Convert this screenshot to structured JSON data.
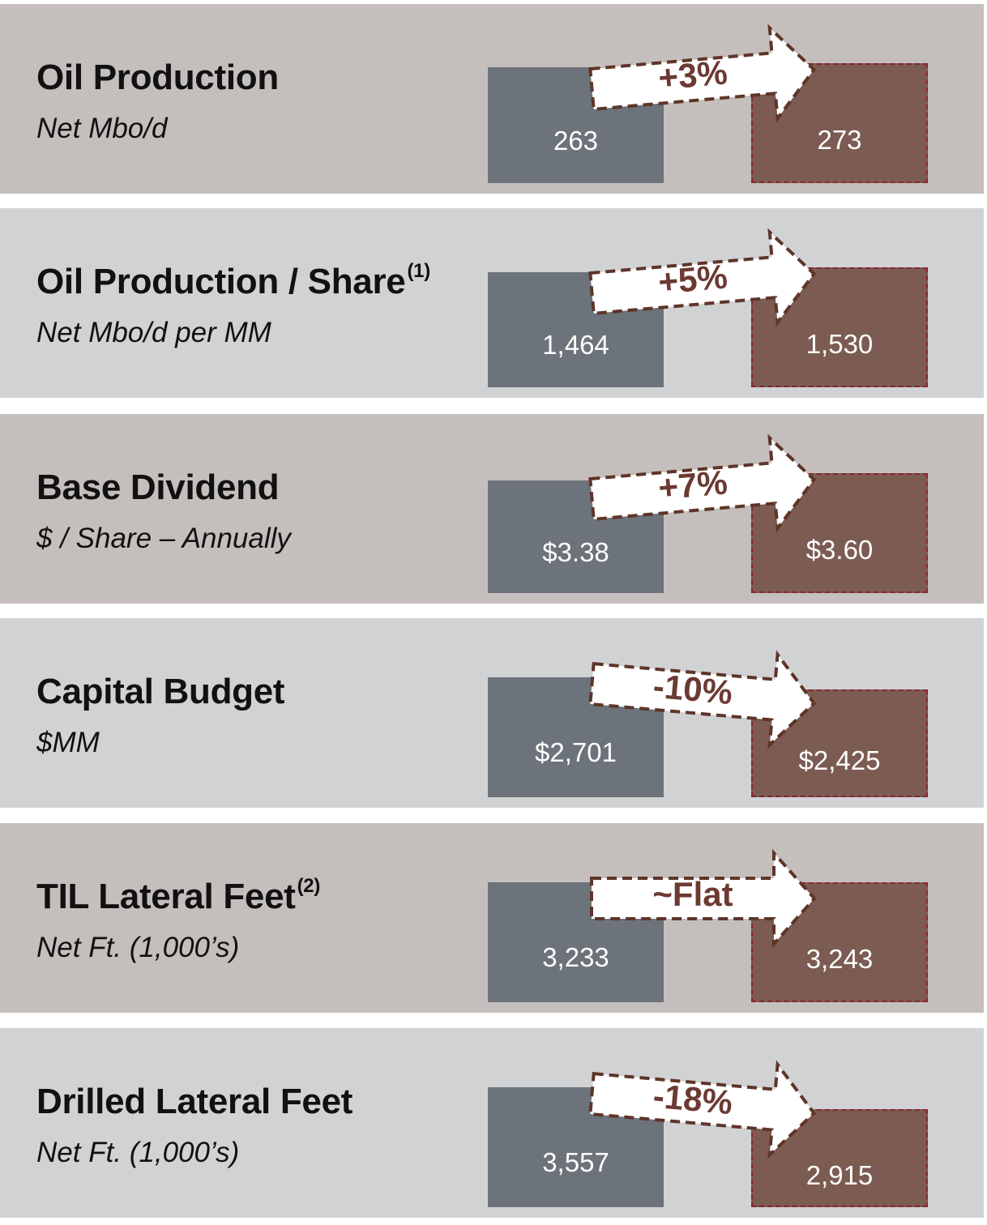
{
  "chart_data": {
    "type": "bar",
    "colors": {
      "prior": "#6d737a",
      "target": "#7b5b52",
      "arrow_stroke": "#5e3528",
      "label": "#6b3a32"
    },
    "metrics": [
      {
        "title": "Oil Production",
        "footnote": "",
        "subtitle": "Net Mbo/d",
        "prior_label": "263",
        "target_label": "273",
        "prior": 263,
        "target": 273,
        "change": "+3%",
        "change_direction": "up"
      },
      {
        "title": "Oil Production / Share",
        "footnote": "(1)",
        "subtitle": "Net Mbo/d per MM",
        "prior_label": "1,464",
        "target_label": "1,530",
        "prior": 1464,
        "target": 1530,
        "change": "+5%",
        "change_direction": "up"
      },
      {
        "title": "Base Dividend",
        "footnote": "",
        "subtitle": "$ / Share – Annually",
        "prior_label": "$3.38",
        "target_label": "$3.60",
        "prior": 3.38,
        "target": 3.6,
        "change": "+7%",
        "change_direction": "up"
      },
      {
        "title": "Capital Budget",
        "footnote": "",
        "subtitle": "$MM",
        "prior_label": "$2,701",
        "target_label": "$2,425",
        "prior": 2701,
        "target": 2425,
        "change": "-10%",
        "change_direction": "down"
      },
      {
        "title": "TIL Lateral Feet",
        "footnote": "(2)",
        "subtitle": "Net Ft. (1,000’s)",
        "prior_label": "3,233",
        "target_label": "3,243",
        "prior": 3233,
        "target": 3243,
        "change": "~Flat",
        "change_direction": "flat"
      },
      {
        "title": "Drilled Lateral Feet",
        "footnote": "",
        "subtitle": "Net Ft. (1,000’s)",
        "prior_label": "3,557",
        "target_label": "2,915",
        "prior": 3557,
        "target": 2915,
        "change": "-18%",
        "change_direction": "down"
      }
    ]
  }
}
